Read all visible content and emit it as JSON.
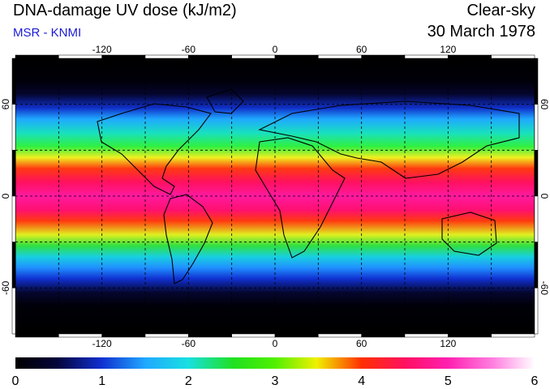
{
  "header": {
    "title": "DNA-damage UV dose (kJ/m2)",
    "subtitle": "MSR - KNMI",
    "mode": "Clear-sky",
    "date": "30 March 1978"
  },
  "map": {
    "lon_ticks": [
      -120,
      -60,
      0,
      60,
      120
    ],
    "lat_ticks": [
      60,
      0,
      -60
    ],
    "lon_range": [
      -180,
      180
    ],
    "lat_range": [
      -90,
      90
    ],
    "grid": true,
    "grid_lon_step": 30,
    "grid_lat_step": 30
  },
  "colorbar": {
    "ticks": [
      0,
      1,
      2,
      3,
      4,
      5,
      6
    ],
    "range": [
      0,
      6
    ]
  }
}
